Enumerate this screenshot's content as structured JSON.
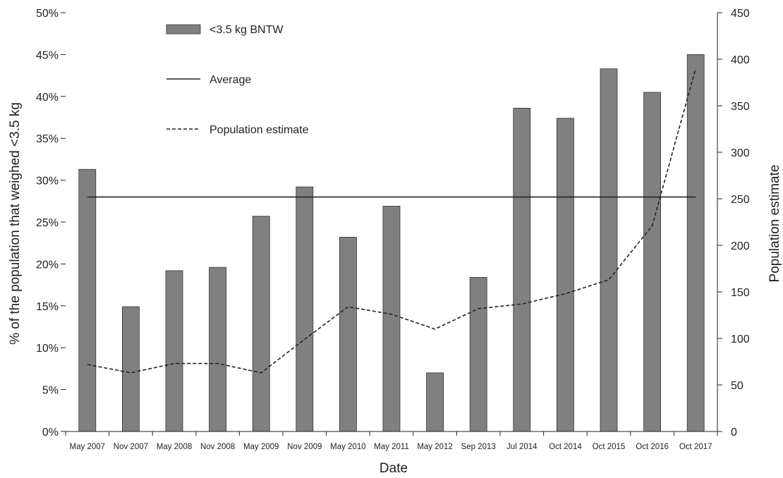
{
  "chart_data": {
    "type": "bar",
    "categories": [
      "May 2007",
      "Nov 2007",
      "May 2008",
      "Nov 2008",
      "May 2009",
      "Nov 2009",
      "May 2010",
      "May 2011",
      "May 2012",
      "Sep 2013",
      "Jul 2014",
      "Oct 2014",
      "Oct 2015",
      "Oct 2016",
      "Oct 2017"
    ],
    "series": [
      {
        "name": "<3.5 kg BNTW",
        "kind": "bar",
        "axis": "left",
        "color": "#808080",
        "values": [
          31.3,
          14.9,
          19.2,
          19.6,
          25.7,
          29.2,
          23.2,
          26.9,
          7.0,
          18.4,
          38.6,
          37.4,
          43.3,
          40.5,
          45.0
        ]
      },
      {
        "name": "Average",
        "kind": "line",
        "style": "solid",
        "axis": "left",
        "color": "#222222",
        "values": [
          28,
          28,
          28,
          28,
          28,
          28,
          28,
          28,
          28,
          28,
          28,
          28,
          28,
          28,
          28
        ]
      },
      {
        "name": "Population estimate",
        "kind": "line",
        "style": "dashed",
        "axis": "right",
        "color": "#222222",
        "values": [
          72,
          63,
          73,
          73,
          63,
          99,
          134,
          126,
          110,
          132,
          137,
          148,
          163,
          221,
          390
        ]
      }
    ],
    "xlabel": "Date",
    "ylabel": "% of the population that weighed <3.5 kg",
    "y2label": "Population estimate",
    "ylim": [
      0,
      50
    ],
    "y2lim": [
      0,
      450
    ],
    "yticks": [
      "0%",
      "5%",
      "10%",
      "15%",
      "20%",
      "25%",
      "30%",
      "35%",
      "40%",
      "45%",
      "50%"
    ],
    "y2ticks": [
      "0",
      "50",
      "100",
      "150",
      "200",
      "250",
      "300",
      "350",
      "400",
      "450"
    ],
    "grid": false,
    "legend_position": "top-left"
  }
}
